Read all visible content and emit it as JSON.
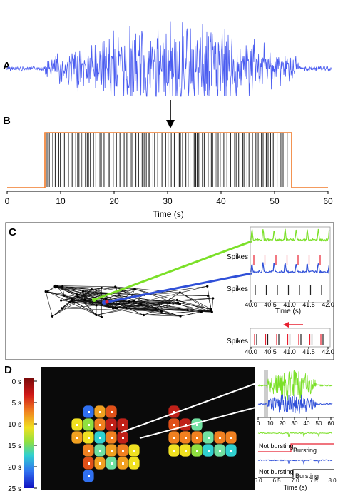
{
  "panels": {
    "a": "A",
    "b": "B",
    "c": "C",
    "d": "D"
  },
  "panel_b": {
    "x_ticks": [
      "0",
      "10",
      "20",
      "30",
      "40",
      "50",
      "60"
    ],
    "xlabel": "Time (s)"
  },
  "panel_c": {
    "spikes_label_1": "Spikes",
    "spikes_label_2": "Spikes",
    "spikes_label_3": "Spikes",
    "x_ticks_1": [
      "40.0",
      "40.5",
      "41.0",
      "41.5",
      "42.0"
    ],
    "xlabel_1": "Time (s)",
    "x_ticks_2": [
      "40.0",
      "40.5",
      "41.0",
      "41.5",
      "42.0"
    ]
  },
  "panel_d": {
    "colorbar_ticks": [
      "0 s",
      "5 s",
      "10 s",
      "15 s",
      "20 s",
      "25 s"
    ],
    "inset_x_ticks": [
      "0",
      "10",
      "20",
      "30",
      "40",
      "50",
      "60"
    ],
    "not_bursting_1": "Not bursting",
    "bursting_1": "Bursting",
    "not_bursting_2": "Not bursting",
    "bursting_2": "Bursting",
    "x_ticks_2": [
      "6.0",
      "6.5",
      "7.0",
      "7.5",
      "8.0"
    ],
    "xlabel_2": "Time (s)"
  },
  "colors": {
    "signal_blue": "#4a5cf0",
    "burst_orange": "#f07a28",
    "green_trace": "#7be028",
    "red_trace": "#e82030",
    "panel_dark": "#0a0a0a"
  }
}
